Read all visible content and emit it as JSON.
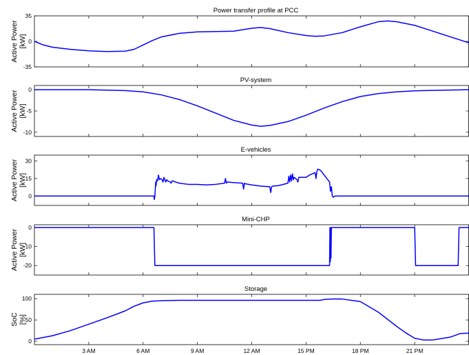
{
  "chart_data": [
    {
      "type": "line",
      "title": "Power transfer profile at PCC",
      "ylabel": [
        "Active Power",
        "[kW]"
      ],
      "ylim": [
        -35,
        35
      ],
      "yticks": [
        {
          "v": 35,
          "label": "35"
        },
        {
          "v": 0,
          "label": "0"
        },
        {
          "v": -35,
          "label": "-35"
        }
      ],
      "x": [
        0,
        0.5,
        1,
        2,
        3,
        4,
        5,
        5.5,
        6,
        6.5,
        7,
        8,
        9,
        10,
        11,
        12,
        12.5,
        13,
        14,
        15,
        15.5,
        16,
        17,
        18,
        19,
        19.5,
        20,
        21,
        22,
        23,
        24
      ],
      "values": [
        0,
        -5,
        -8,
        -11,
        -13,
        -14,
        -13.5,
        -11,
        -5,
        1,
        6,
        11,
        13,
        13.5,
        14,
        18,
        19,
        17.5,
        12,
        8,
        7,
        7.5,
        12,
        20,
        27,
        28,
        27,
        22,
        14,
        6,
        -2
      ]
    },
    {
      "type": "line",
      "title": "PV-system",
      "ylabel": [
        "Active Power",
        "[kW]"
      ],
      "ylim": [
        -11,
        1
      ],
      "yticks": [
        {
          "v": 0,
          "label": "0"
        },
        {
          "v": -5,
          "label": "-5"
        },
        {
          "v": -10,
          "label": "-10"
        }
      ],
      "x": [
        0,
        3,
        5,
        6,
        7,
        8,
        9,
        10,
        11,
        12,
        12.5,
        13,
        14,
        15,
        16,
        17,
        18,
        19,
        20,
        21,
        22,
        24
      ],
      "values": [
        0,
        0,
        -0.2,
        -0.5,
        -1.2,
        -2.3,
        -3.8,
        -5.5,
        -7.2,
        -8.3,
        -8.6,
        -8.4,
        -7.5,
        -6,
        -4.3,
        -2.8,
        -1.6,
        -0.9,
        -0.5,
        -0.25,
        -0.15,
        0
      ]
    },
    {
      "type": "line",
      "title": "E-vehicles",
      "ylabel": [
        "Active Power",
        "[kW]"
      ],
      "ylim": [
        -8,
        35
      ],
      "yticks": [
        {
          "v": 30,
          "label": "30"
        },
        {
          "v": 15,
          "label": "15"
        },
        {
          "v": 0,
          "label": "0"
        }
      ],
      "x": [
        0,
        6.6,
        6.62,
        6.65,
        6.7,
        6.72,
        6.75,
        6.8,
        6.85,
        6.9,
        6.95,
        7.05,
        7.1,
        7.15,
        7.25,
        7.3,
        7.35,
        7.5,
        7.55,
        7.6,
        7.8,
        8,
        8.5,
        9,
        9.5,
        10,
        10.5,
        10.55,
        10.6,
        10.65,
        11,
        11.5,
        11.55,
        11.6,
        11.65,
        12,
        12.5,
        13,
        13.05,
        13.1,
        13.15,
        13.5,
        14,
        14.05,
        14.1,
        14.15,
        14.2,
        14.25,
        14.3,
        14.35,
        14.5,
        14.55,
        14.6,
        15,
        15.2,
        15.5,
        15.55,
        15.6,
        15.65,
        15.8,
        16,
        16.2,
        16.3,
        16.35,
        16.4,
        16.45,
        16.5,
        16.6,
        17,
        24
      ],
      "values": [
        0,
        0,
        -3,
        0,
        12,
        9,
        14,
        13,
        18,
        14,
        15,
        14,
        12,
        16,
        12,
        14,
        13,
        12,
        11,
        13,
        12,
        11,
        10,
        10,
        9.5,
        10,
        11,
        15,
        11,
        12,
        11.5,
        11,
        6,
        11,
        10.5,
        9.5,
        8.5,
        8,
        3,
        8,
        8.5,
        9,
        11,
        17,
        12,
        18,
        13,
        19,
        14,
        16,
        14,
        12,
        16,
        16,
        18,
        20,
        15,
        21,
        23,
        22,
        18,
        14,
        12,
        4,
        8,
        0,
        -1,
        0,
        0,
        0
      ]
    },
    {
      "type": "line",
      "title": "Mini-CHP",
      "ylabel": [
        "Active Power",
        "[kW]"
      ],
      "ylim": [
        -25,
        1.5
      ],
      "yticks": [
        {
          "v": 0,
          "label": "0"
        },
        {
          "v": -10,
          "label": "-10"
        },
        {
          "v": -20,
          "label": "-20"
        }
      ],
      "x": [
        0,
        6.6,
        6.65,
        16.3,
        16.32,
        16.34,
        16.36,
        16.38,
        16.4,
        16.42,
        21,
        21.05,
        23.4,
        23.45,
        24
      ],
      "values": [
        0,
        0,
        -20,
        -20,
        0,
        -18,
        0,
        -16,
        0,
        0,
        0,
        -20,
        -20,
        0,
        0
      ]
    },
    {
      "type": "line",
      "title": "Storage",
      "ylabel": [
        "SoC",
        "[%]"
      ],
      "ylim": [
        -8,
        110
      ],
      "yticks": [
        {
          "v": 100,
          "label": "100"
        },
        {
          "v": 50,
          "label": "50"
        },
        {
          "v": 0,
          "label": "0"
        }
      ],
      "x": [
        0,
        1,
        2,
        3,
        4,
        5,
        5.5,
        6,
        6.5,
        7,
        8,
        9,
        10,
        11,
        12,
        13,
        14,
        15,
        15.8,
        16,
        16.5,
        17,
        18,
        19,
        20,
        20.5,
        21,
        21.5,
        22,
        23,
        23.5,
        24
      ],
      "values": [
        5,
        13,
        25,
        40,
        55,
        71,
        82,
        90,
        94,
        95,
        96,
        96,
        96,
        96,
        96,
        96,
        96,
        96,
        96,
        98,
        99,
        99,
        93,
        68,
        35,
        20,
        7,
        3,
        3,
        10,
        18,
        19
      ]
    }
  ],
  "xticks": [
    {
      "v": 3,
      "label": "3 AM"
    },
    {
      "v": 6,
      "label": "6 AM"
    },
    {
      "v": 9,
      "label": "9 AM"
    },
    {
      "v": 12,
      "label": "12 AM"
    },
    {
      "v": 15,
      "label": "15 PM"
    },
    {
      "v": 18,
      "label": "18 PM"
    },
    {
      "v": 21,
      "label": "21 PM"
    }
  ],
  "xlim": [
    0,
    24
  ],
  "colors": {
    "series": "#0000ff",
    "axes": "#000000"
  }
}
